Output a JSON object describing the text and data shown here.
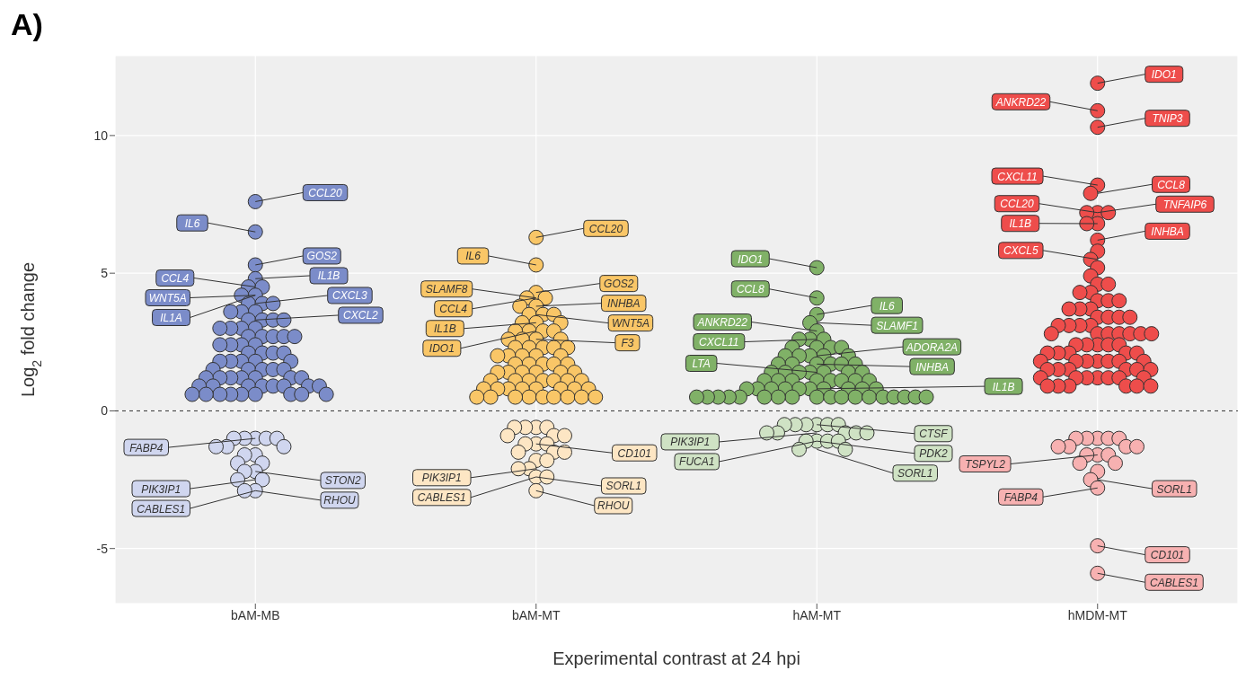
{
  "chart_data": {
    "type": "scatter",
    "title": "A)",
    "xlabel": "Experimental contrast at 24 hpi",
    "ylabel": "Log$_{2}$ fold change",
    "categories": [
      "bAM-MB",
      "bAM-MT",
      "hAM-MT",
      "hMDM-MT"
    ],
    "ylim": [
      -7,
      12.9
    ],
    "yticks": [
      -5,
      0,
      5,
      10
    ],
    "grid": true,
    "marker": "circle",
    "ref_lines": [
      {
        "axis": "y",
        "value": 0,
        "color": "#333333",
        "line_style": "dashed"
      }
    ],
    "series": [
      {
        "color": "#7b8cc9",
        "x": [
          "bAM-MB",
          "bAM-MB",
          "bAM-MB",
          "bAM-MB",
          "bAM-MB",
          "bAM-MB",
          "bAM-MB",
          "bAM-MB",
          "bAM-MB",
          "bAM-MB",
          "bAM-MB",
          "bAM-MB",
          "bAM-MB",
          "bAM-MB",
          "bAM-MB",
          "bAM-MB",
          "bAM-MB",
          "bAM-MB",
          "bAM-MB",
          "bAM-MB",
          "bAM-MB",
          "bAM-MB",
          "bAM-MB",
          "bAM-MB",
          "bAM-MB",
          "bAM-MB",
          "bAM-MB",
          "bAM-MB",
          "bAM-MB",
          "bAM-MB",
          "bAM-MB",
          "bAM-MB",
          "bAM-MB",
          "bAM-MB",
          "bAM-MB",
          "bAM-MB",
          "bAM-MB",
          "bAM-MB",
          "bAM-MB",
          "bAM-MB",
          "bAM-MB",
          "bAM-MB",
          "bAM-MB",
          "bAM-MB",
          "bAM-MB",
          "bAM-MB",
          "bAM-MB",
          "bAM-MB",
          "bAM-MB",
          "bAM-MB",
          "bAM-MB",
          "bAM-MB",
          "bAM-MB",
          "bAM-MB",
          "bAM-MB",
          "bAM-MB",
          "bAM-MB",
          "bAM-MB",
          "bAM-MB",
          "bAM-MB",
          "bAM-MB",
          "bAM-MB",
          "bAM-MB",
          "bAM-MB",
          "bAM-MB",
          "bAM-MB",
          "bAM-MB",
          "bAM-MB",
          "bAM-MB"
        ],
        "values": [
          7.6,
          6.5,
          5.3,
          4.8,
          4.5,
          4.5,
          4.2,
          4.2,
          3.9,
          3.9,
          3.9,
          3.6,
          3.6,
          3.6,
          3.3,
          3.3,
          3.3,
          3.3,
          3.0,
          3.0,
          3.0,
          3.0,
          2.7,
          2.7,
          2.7,
          2.7,
          2.7,
          2.4,
          2.4,
          2.4,
          2.4,
          2.1,
          2.1,
          2.1,
          2.1,
          1.8,
          1.8,
          1.8,
          1.8,
          1.8,
          1.5,
          1.5,
          1.5,
          1.5,
          1.5,
          1.2,
          1.2,
          1.2,
          1.2,
          1.2,
          1.2,
          1.2,
          0.9,
          0.9,
          0.9,
          0.9,
          0.9,
          0.9,
          0.9,
          0.9,
          0.6,
          0.6,
          0.6,
          0.6,
          0.6,
          0.6,
          0.6,
          0.6,
          0.6
        ]
      },
      {
        "color": "#d0d6ef",
        "x": [
          "bAM-MB",
          "bAM-MB",
          "bAM-MB",
          "bAM-MB",
          "bAM-MB",
          "bAM-MB",
          "bAM-MB",
          "bAM-MB",
          "bAM-MB",
          "bAM-MB",
          "bAM-MB",
          "bAM-MB",
          "bAM-MB",
          "bAM-MB",
          "bAM-MB",
          "bAM-MB",
          "bAM-MB",
          "bAM-MB"
        ],
        "values": [
          -1.0,
          -1.0,
          -1.0,
          -1.0,
          -1.0,
          -1.3,
          -1.3,
          -1.3,
          -1.6,
          -1.6,
          -1.9,
          -1.9,
          -2.2,
          -2.2,
          -2.5,
          -2.5,
          -2.9,
          -2.9
        ]
      },
      {
        "color": "#f9c667",
        "x": [
          "bAM-MT",
          "bAM-MT",
          "bAM-MT",
          "bAM-MT",
          "bAM-MT",
          "bAM-MT",
          "bAM-MT",
          "bAM-MT",
          "bAM-MT",
          "bAM-MT",
          "bAM-MT",
          "bAM-MT",
          "bAM-MT",
          "bAM-MT",
          "bAM-MT",
          "bAM-MT",
          "bAM-MT",
          "bAM-MT",
          "bAM-MT",
          "bAM-MT",
          "bAM-MT",
          "bAM-MT",
          "bAM-MT",
          "bAM-MT",
          "bAM-MT",
          "bAM-MT",
          "bAM-MT",
          "bAM-MT",
          "bAM-MT",
          "bAM-MT",
          "bAM-MT",
          "bAM-MT",
          "bAM-MT",
          "bAM-MT",
          "bAM-MT",
          "bAM-MT",
          "bAM-MT",
          "bAM-MT",
          "bAM-MT",
          "bAM-MT",
          "bAM-MT",
          "bAM-MT",
          "bAM-MT",
          "bAM-MT",
          "bAM-MT",
          "bAM-MT",
          "bAM-MT",
          "bAM-MT",
          "bAM-MT",
          "bAM-MT",
          "bAM-MT",
          "bAM-MT",
          "bAM-MT",
          "bAM-MT",
          "bAM-MT",
          "bAM-MT",
          "bAM-MT",
          "bAM-MT",
          "bAM-MT",
          "bAM-MT",
          "bAM-MT",
          "bAM-MT",
          "bAM-MT",
          "bAM-MT",
          "bAM-MT",
          "bAM-MT"
        ],
        "values": [
          6.3,
          5.3,
          4.3,
          4.1,
          4.1,
          3.8,
          3.8,
          3.5,
          3.5,
          3.5,
          3.2,
          3.2,
          3.2,
          2.9,
          2.9,
          2.9,
          2.9,
          2.6,
          2.6,
          2.6,
          2.6,
          2.3,
          2.3,
          2.3,
          2.3,
          2.3,
          2.0,
          2.0,
          2.0,
          2.0,
          2.0,
          1.7,
          1.7,
          1.7,
          1.7,
          1.7,
          1.4,
          1.4,
          1.4,
          1.4,
          1.4,
          1.4,
          1.1,
          1.1,
          1.1,
          1.1,
          1.1,
          1.1,
          1.1,
          0.8,
          0.8,
          0.8,
          0.8,
          0.8,
          0.8,
          0.8,
          0.8,
          0.5,
          0.5,
          0.5,
          0.5,
          0.5,
          0.5,
          0.5,
          0.5,
          0.5
        ]
      },
      {
        "color": "#fde6c4",
        "x": [
          "bAM-MT",
          "bAM-MT",
          "bAM-MT",
          "bAM-MT",
          "bAM-MT",
          "bAM-MT",
          "bAM-MT",
          "bAM-MT",
          "bAM-MT",
          "bAM-MT",
          "bAM-MT",
          "bAM-MT",
          "bAM-MT",
          "bAM-MT",
          "bAM-MT",
          "bAM-MT",
          "bAM-MT",
          "bAM-MT",
          "bAM-MT",
          "bAM-MT"
        ],
        "values": [
          -0.6,
          -0.6,
          -0.6,
          -0.6,
          -0.9,
          -0.9,
          -0.9,
          -1.2,
          -1.2,
          -1.2,
          -1.5,
          -1.5,
          -1.5,
          -1.8,
          -1.8,
          -2.1,
          -2.1,
          -2.4,
          -2.4,
          -2.9
        ]
      },
      {
        "color": "#80b167",
        "x": [
          "hAM-MT",
          "hAM-MT",
          "hAM-MT",
          "hAM-MT",
          "hAM-MT",
          "hAM-MT",
          "hAM-MT",
          "hAM-MT",
          "hAM-MT",
          "hAM-MT",
          "hAM-MT",
          "hAM-MT",
          "hAM-MT",
          "hAM-MT",
          "hAM-MT",
          "hAM-MT",
          "hAM-MT",
          "hAM-MT",
          "hAM-MT",
          "hAM-MT",
          "hAM-MT",
          "hAM-MT",
          "hAM-MT",
          "hAM-MT",
          "hAM-MT",
          "hAM-MT",
          "hAM-MT",
          "hAM-MT",
          "hAM-MT",
          "hAM-MT",
          "hAM-MT",
          "hAM-MT",
          "hAM-MT",
          "hAM-MT",
          "hAM-MT",
          "hAM-MT",
          "hAM-MT",
          "hAM-MT",
          "hAM-MT",
          "hAM-MT",
          "hAM-MT",
          "hAM-MT",
          "hAM-MT",
          "hAM-MT",
          "hAM-MT",
          "hAM-MT",
          "hAM-MT",
          "hAM-MT",
          "hAM-MT",
          "hAM-MT",
          "hAM-MT",
          "hAM-MT",
          "hAM-MT",
          "hAM-MT",
          "hAM-MT",
          "hAM-MT",
          "hAM-MT",
          "hAM-MT",
          "hAM-MT",
          "hAM-MT",
          "hAM-MT",
          "hAM-MT",
          "hAM-MT",
          "hAM-MT",
          "hAM-MT",
          "hAM-MT"
        ],
        "values": [
          5.2,
          4.1,
          3.5,
          3.2,
          2.9,
          2.6,
          2.6,
          2.6,
          2.3,
          2.3,
          2.3,
          2.3,
          2.0,
          2.0,
          2.0,
          2.0,
          2.0,
          1.7,
          1.7,
          1.7,
          1.7,
          1.7,
          1.7,
          1.4,
          1.4,
          1.4,
          1.4,
          1.4,
          1.4,
          1.4,
          1.1,
          1.1,
          1.1,
          1.1,
          1.1,
          1.1,
          1.1,
          1.1,
          0.8,
          0.8,
          0.8,
          0.8,
          0.8,
          0.8,
          0.8,
          0.8,
          0.8,
          0.8,
          0.5,
          0.5,
          0.5,
          0.5,
          0.5,
          0.5,
          0.5,
          0.5,
          0.5,
          0.5,
          0.5,
          0.5,
          0.5,
          0.5,
          0.5,
          0.5,
          0.5,
          0.5
        ]
      },
      {
        "color": "#cfe2c4",
        "x": [
          "hAM-MT",
          "hAM-MT",
          "hAM-MT",
          "hAM-MT",
          "hAM-MT",
          "hAM-MT",
          "hAM-MT",
          "hAM-MT",
          "hAM-MT",
          "hAM-MT",
          "hAM-MT",
          "hAM-MT",
          "hAM-MT",
          "hAM-MT",
          "hAM-MT",
          "hAM-MT",
          "hAM-MT"
        ],
        "values": [
          -0.5,
          -0.5,
          -0.5,
          -0.5,
          -0.5,
          -0.5,
          -0.8,
          -0.8,
          -0.8,
          -0.8,
          -0.8,
          -1.1,
          -1.1,
          -1.1,
          -1.1,
          -1.4,
          -1.4
        ]
      },
      {
        "color": "#ee4d4b",
        "x": [
          "hMDM-MT",
          "hMDM-MT",
          "hMDM-MT",
          "hMDM-MT",
          "hMDM-MT",
          "hMDM-MT",
          "hMDM-MT",
          "hMDM-MT",
          "hMDM-MT",
          "hMDM-MT",
          "hMDM-MT",
          "hMDM-MT",
          "hMDM-MT",
          "hMDM-MT",
          "hMDM-MT",
          "hMDM-MT",
          "hMDM-MT",
          "hMDM-MT",
          "hMDM-MT",
          "hMDM-MT",
          "hMDM-MT",
          "hMDM-MT",
          "hMDM-MT",
          "hMDM-MT",
          "hMDM-MT",
          "hMDM-MT",
          "hMDM-MT",
          "hMDM-MT",
          "hMDM-MT",
          "hMDM-MT",
          "hMDM-MT",
          "hMDM-MT",
          "hMDM-MT",
          "hMDM-MT",
          "hMDM-MT",
          "hMDM-MT",
          "hMDM-MT",
          "hMDM-MT",
          "hMDM-MT",
          "hMDM-MT",
          "hMDM-MT",
          "hMDM-MT",
          "hMDM-MT",
          "hMDM-MT",
          "hMDM-MT",
          "hMDM-MT",
          "hMDM-MT",
          "hMDM-MT",
          "hMDM-MT",
          "hMDM-MT",
          "hMDM-MT",
          "hMDM-MT",
          "hMDM-MT",
          "hMDM-MT",
          "hMDM-MT",
          "hMDM-MT",
          "hMDM-MT",
          "hMDM-MT",
          "hMDM-MT",
          "hMDM-MT",
          "hMDM-MT",
          "hMDM-MT",
          "hMDM-MT",
          "hMDM-MT",
          "hMDM-MT",
          "hMDM-MT",
          "hMDM-MT",
          "hMDM-MT",
          "hMDM-MT",
          "hMDM-MT",
          "hMDM-MT",
          "hMDM-MT",
          "hMDM-MT",
          "hMDM-MT",
          "hMDM-MT",
          "hMDM-MT"
        ],
        "values": [
          11.9,
          10.9,
          10.3,
          8.2,
          7.9,
          7.2,
          7.2,
          7.2,
          6.8,
          6.8,
          6.2,
          5.8,
          5.5,
          5.2,
          4.9,
          4.6,
          4.6,
          4.3,
          4.3,
          4.0,
          4.0,
          4.0,
          3.7,
          3.7,
          3.7,
          3.4,
          3.4,
          3.4,
          3.4,
          3.1,
          3.1,
          3.1,
          3.1,
          2.8,
          2.8,
          2.8,
          2.8,
          2.8,
          2.8,
          2.8,
          2.4,
          2.4,
          2.4,
          2.4,
          2.4,
          2.1,
          2.1,
          2.1,
          2.1,
          2.1,
          1.8,
          1.8,
          1.8,
          1.8,
          1.8,
          1.8,
          1.8,
          1.5,
          1.5,
          1.5,
          1.5,
          1.5,
          1.5,
          1.2,
          1.2,
          1.2,
          1.2,
          1.2,
          1.2,
          1.2,
          0.9,
          0.9,
          0.9,
          0.9,
          0.9,
          0.9
        ]
      },
      {
        "color": "#f7b1b1",
        "x": [
          "hMDM-MT",
          "hMDM-MT",
          "hMDM-MT",
          "hMDM-MT",
          "hMDM-MT",
          "hMDM-MT",
          "hMDM-MT",
          "hMDM-MT",
          "hMDM-MT",
          "hMDM-MT",
          "hMDM-MT",
          "hMDM-MT",
          "hMDM-MT",
          "hMDM-MT",
          "hMDM-MT",
          "hMDM-MT",
          "hMDM-MT",
          "hMDM-MT",
          "hMDM-MT"
        ],
        "values": [
          -1.0,
          -1.0,
          -1.0,
          -1.0,
          -1.0,
          -1.3,
          -1.3,
          -1.3,
          -1.3,
          -1.6,
          -1.6,
          -1.6,
          -1.9,
          -1.9,
          -2.2,
          -2.5,
          -2.8,
          -4.9,
          -5.9
        ]
      }
    ],
    "annotations": [
      {
        "text": "CCL20",
        "x": "bAM-MB",
        "y": 7.6
      },
      {
        "text": "IL6",
        "x": "bAM-MB",
        "y": 6.5
      },
      {
        "text": "GOS2",
        "x": "bAM-MB",
        "y": 5.3
      },
      {
        "text": "CCL4",
        "x": "bAM-MB",
        "y": 4.5
      },
      {
        "text": "IL1B",
        "x": "bAM-MB",
        "y": 4.8
      },
      {
        "text": "WNT5A",
        "x": "bAM-MB",
        "y": 4.2
      },
      {
        "text": "CXCL3",
        "x": "bAM-MB",
        "y": 3.9
      },
      {
        "text": "IL1A",
        "x": "bAM-MB",
        "y": 4.2
      },
      {
        "text": "CXCL2",
        "x": "bAM-MB",
        "y": 3.3
      },
      {
        "text": "PIK3IP1",
        "x": "bAM-MB",
        "y": -2.5
      },
      {
        "text": "STON2",
        "x": "bAM-MB",
        "y": -2.2
      },
      {
        "text": "CABLES1",
        "x": "bAM-MB",
        "y": -2.9
      },
      {
        "text": "RHOU",
        "x": "bAM-MB",
        "y": -2.9
      },
      {
        "text": "FABP4",
        "x": "bAM-MB",
        "y": -1.0
      },
      {
        "text": "CCL20",
        "x": "bAM-MT",
        "y": 6.3
      },
      {
        "text": "IL6",
        "x": "bAM-MT",
        "y": 5.3
      },
      {
        "text": "GOS2",
        "x": "bAM-MT",
        "y": 4.3
      },
      {
        "text": "SLAMF8",
        "x": "bAM-MT",
        "y": 4.1
      },
      {
        "text": "INHBA",
        "x": "bAM-MT",
        "y": 3.8
      },
      {
        "text": "CCL4",
        "x": "bAM-MT",
        "y": 4.1
      },
      {
        "text": "WNT5A",
        "x": "bAM-MT",
        "y": 3.5
      },
      {
        "text": "IL1B",
        "x": "bAM-MT",
        "y": 3.2
      },
      {
        "text": "F3",
        "x": "bAM-MT",
        "y": 2.6
      },
      {
        "text": "IDO1",
        "x": "bAM-MT",
        "y": 2.9
      },
      {
        "text": "CD101",
        "x": "bAM-MT",
        "y": -1.2
      },
      {
        "text": "PIK3IP1",
        "x": "bAM-MT",
        "y": -2.1
      },
      {
        "text": "SORL1",
        "x": "bAM-MT",
        "y": -2.4
      },
      {
        "text": "CABLES1",
        "x": "bAM-MT",
        "y": -2.4
      },
      {
        "text": "RHOU",
        "x": "bAM-MT",
        "y": -2.9
      },
      {
        "text": "IL6",
        "x": "hAM-MT",
        "y": 3.5
      },
      {
        "text": "IDO1",
        "x": "hAM-MT",
        "y": 5.2
      },
      {
        "text": "SLAMF1",
        "x": "hAM-MT",
        "y": 3.2
      },
      {
        "text": "ANKRD22",
        "x": "hAM-MT",
        "y": 2.9
      },
      {
        "text": "ADORA2A",
        "x": "hAM-MT",
        "y": 2.0
      },
      {
        "text": "CCL8",
        "x": "hAM-MT",
        "y": 4.1
      },
      {
        "text": "INHBA",
        "x": "hAM-MT",
        "y": 1.7
      },
      {
        "text": "CXCL11",
        "x": "hAM-MT",
        "y": 2.6
      },
      {
        "text": "IL1B",
        "x": "hAM-MT",
        "y": 0.8
      },
      {
        "text": "LTA",
        "x": "hAM-MT",
        "y": 1.4
      },
      {
        "text": "CTSF",
        "x": "hAM-MT",
        "y": -0.5
      },
      {
        "text": "PIK3IP1",
        "x": "hAM-MT",
        "y": -0.8
      },
      {
        "text": "PDK2",
        "x": "hAM-MT",
        "y": -1.1
      },
      {
        "text": "FUCA1",
        "x": "hAM-MT",
        "y": -1.1
      },
      {
        "text": "SORL1",
        "x": "hAM-MT",
        "y": -1.4
      },
      {
        "text": "IDO1",
        "x": "hMDM-MT",
        "y": 11.9
      },
      {
        "text": "ANKRD22",
        "x": "hMDM-MT",
        "y": 10.9
      },
      {
        "text": "TNIP3",
        "x": "hMDM-MT",
        "y": 10.3
      },
      {
        "text": "CXCL11",
        "x": "hMDM-MT",
        "y": 8.2
      },
      {
        "text": "CCL8",
        "x": "hMDM-MT",
        "y": 7.9
      },
      {
        "text": "CCL20",
        "x": "hMDM-MT",
        "y": 7.2
      },
      {
        "text": "TNFAIP6",
        "x": "hMDM-MT",
        "y": 7.2
      },
      {
        "text": "IL1B",
        "x": "hMDM-MT",
        "y": 6.8
      },
      {
        "text": "INHBA",
        "x": "hMDM-MT",
        "y": 6.2
      },
      {
        "text": "CXCL5",
        "x": "hMDM-MT",
        "y": 5.5
      },
      {
        "text": "SORL1",
        "x": "hMDM-MT",
        "y": -2.5
      },
      {
        "text": "TSPYL2",
        "x": "hMDM-MT",
        "y": -1.6
      },
      {
        "text": "CD101",
        "x": "hMDM-MT",
        "y": -4.9
      },
      {
        "text": "FABP4",
        "x": "hMDM-MT",
        "y": -2.8
      },
      {
        "text": "CABLES1",
        "x": "hMDM-MT",
        "y": -5.9
      }
    ]
  }
}
